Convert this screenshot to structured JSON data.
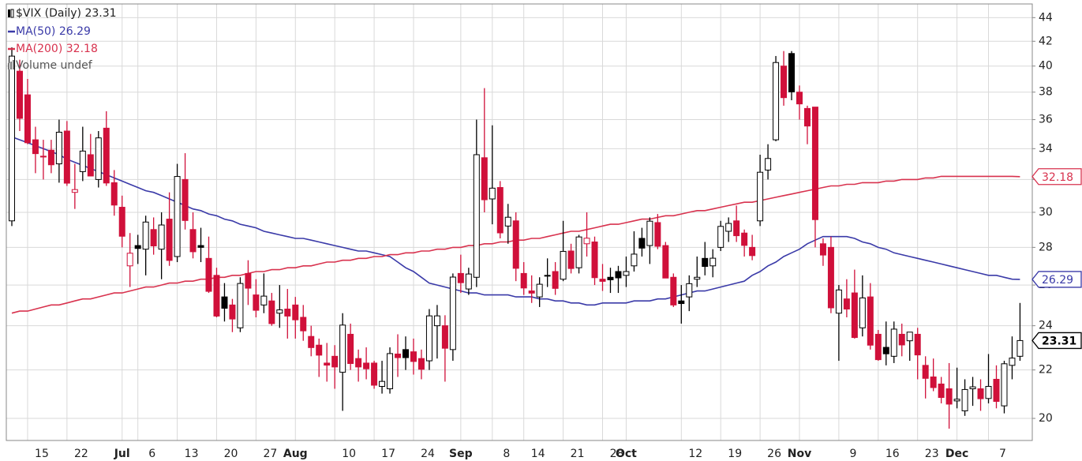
{
  "chart_data": {
    "type": "candlestick",
    "symbol": "$VIX (Daily)",
    "last": 23.31,
    "volume_legend": "Volume undef",
    "ylim": [
      19.15,
      45.2
    ],
    "ylog": true,
    "yticks": [
      20,
      22,
      24,
      26,
      28,
      30,
      32,
      34,
      36,
      38,
      40,
      42,
      44
    ],
    "grid": true,
    "up_color": "#000000",
    "down_color": "#d0103a",
    "categories": [
      null,
      null,
      "15",
      null,
      null,
      null,
      null,
      "22",
      null,
      null,
      null,
      null,
      null,
      null,
      "Jul",
      null,
      "6",
      null,
      null,
      null,
      null,
      "13",
      null,
      null,
      null,
      null,
      "20",
      null,
      null,
      null,
      null,
      "27",
      null,
      null,
      null,
      null,
      "Aug",
      null,
      null,
      null,
      null,
      "10",
      null,
      null,
      null,
      null,
      "17",
      null,
      null,
      null,
      null,
      "24",
      null,
      null,
      null,
      null,
      null,
      "Sep",
      null,
      null,
      null,
      "8",
      null,
      null,
      null,
      "14",
      null,
      null,
      null,
      null,
      "21",
      null,
      null,
      null,
      null,
      "28",
      null,
      null,
      "Oct",
      null,
      null,
      null,
      null,
      null,
      null,
      "12",
      null,
      null,
      null,
      null,
      "19",
      null,
      null,
      null,
      null,
      "26",
      null,
      null,
      null,
      null,
      "Nov",
      null,
      null,
      null,
      null,
      "9",
      null,
      null,
      null,
      null,
      "16",
      null,
      null,
      null,
      null,
      "23",
      null,
      null,
      null,
      null,
      "Dec",
      null,
      null,
      null,
      "7",
      null,
      null,
      null,
      null
    ],
    "candles": {
      "open": [
        29.5,
        39.6,
        37.8,
        34.6,
        33.5,
        33.9,
        33.0,
        35.2,
        31.2,
        32.5,
        33.6,
        32.0,
        35.4,
        31.8,
        30.3,
        27.0,
        28.1,
        27.9,
        29.0,
        27.9,
        29.6,
        27.5,
        32.0,
        29.0,
        28.1,
        27.4,
        26.5,
        25.4,
        25.0,
        23.9,
        26.6,
        25.5,
        25.0,
        25.2,
        24.6,
        24.8,
        25.0,
        24.4,
        23.5,
        23.1,
        22.3,
        22.6,
        21.9,
        23.6,
        22.5,
        22.3,
        22.3,
        21.3,
        21.2,
        22.7,
        22.9,
        22.8,
        22.5,
        22.4,
        24.0,
        24.0,
        22.9,
        26.6,
        25.8,
        26.4,
        33.4,
        30.8,
        31.5,
        29.2,
        29.5,
        26.6,
        25.7,
        25.4,
        26.5,
        26.7,
        26.3,
        27.8,
        26.9,
        28.2,
        28.3,
        26.3,
        26.4,
        26.7,
        26.5,
        27.0,
        28.5,
        28.1,
        29.4,
        28.1,
        26.4,
        25.2,
        25.4,
        26.3,
        27.4,
        27.0,
        28.0,
        28.9,
        29.5,
        28.8,
        28.0,
        29.5,
        32.6,
        34.6,
        40.0,
        41.0,
        38.0,
        36.8,
        36.9,
        28.2,
        28.0,
        24.6,
        25.3,
        25.6,
        23.9,
        25.4,
        23.6,
        23.0,
        22.6,
        23.6,
        23.3,
        23.6,
        22.2,
        21.7,
        21.4,
        21.2,
        20.7,
        20.3,
        21.2,
        21.2,
        20.8,
        21.6,
        20.5,
        22.2,
        22.6
      ],
      "high": [
        41.5,
        40.5,
        39.0,
        35.5,
        34.6,
        34.6,
        36.0,
        35.9,
        33.0,
        35.5,
        35.0,
        35.2,
        36.6,
        32.6,
        31.0,
        28.8,
        28.7,
        29.8,
        29.7,
        30.0,
        31.2,
        33.0,
        33.7,
        30.0,
        29.1,
        28.6,
        26.9,
        26.1,
        25.3,
        26.4,
        27.3,
        26.3,
        26.6,
        25.6,
        26.0,
        25.8,
        25.4,
        25.0,
        24.0,
        23.4,
        23.2,
        23.1,
        24.6,
        24.1,
        22.9,
        23.0,
        22.4,
        22.4,
        23.0,
        23.6,
        23.5,
        23.4,
        22.9,
        24.8,
        25.0,
        24.5,
        26.6,
        27.6,
        26.9,
        36.0,
        38.3,
        35.6,
        31.9,
        30.5,
        30.0,
        27.2,
        26.5,
        26.4,
        27.4,
        27.2,
        29.5,
        28.2,
        28.7,
        30.0,
        28.6,
        27.1,
        26.9,
        27.0,
        27.5,
        28.9,
        29.1,
        29.7,
        29.9,
        28.3,
        26.6,
        26.0,
        26.5,
        27.5,
        28.3,
        27.9,
        29.5,
        29.7,
        30.4,
        29.0,
        28.7,
        33.6,
        34.3,
        40.8,
        41.2,
        41.2,
        38.5,
        37.0,
        36.9,
        28.5,
        28.6,
        26.0,
        26.3,
        26.8,
        26.5,
        26.1,
        23.8,
        24.2,
        24.2,
        24.1,
        23.7,
        23.9,
        22.6,
        22.5,
        21.7,
        22.3,
        22.1,
        21.6,
        21.7,
        21.6,
        22.7,
        22.2,
        22.4,
        23.5,
        25.1
      ],
      "low": [
        29.2,
        35.2,
        34.3,
        32.4,
        32.0,
        32.4,
        31.8,
        31.6,
        30.2,
        31.9,
        32.2,
        31.5,
        31.6,
        29.8,
        28.0,
        25.9,
        27.1,
        26.5,
        27.6,
        26.3,
        27.0,
        27.2,
        29.0,
        27.4,
        27.2,
        25.6,
        24.4,
        24.2,
        23.7,
        23.7,
        25.0,
        24.4,
        24.6,
        24.0,
        23.9,
        23.4,
        23.4,
        23.3,
        22.6,
        21.7,
        21.5,
        21.2,
        20.3,
        22.0,
        21.5,
        21.6,
        21.2,
        21.0,
        21.0,
        21.7,
        22.0,
        21.8,
        21.6,
        22.0,
        22.5,
        21.5,
        22.4,
        25.6,
        25.5,
        25.9,
        30.0,
        29.3,
        28.5,
        28.2,
        26.2,
        25.5,
        25.1,
        24.9,
        25.9,
        25.5,
        26.2,
        26.6,
        26.6,
        27.5,
        26.0,
        25.7,
        25.6,
        25.6,
        25.9,
        26.7,
        27.5,
        27.1,
        27.9,
        26.4,
        24.9,
        24.1,
        24.7,
        25.9,
        26.5,
        26.4,
        27.8,
        28.3,
        28.3,
        27.5,
        27.3,
        29.2,
        32.0,
        34.5,
        37.0,
        37.4,
        36.0,
        34.3,
        28.0,
        27.0,
        24.6,
        22.4,
        24.4,
        23.4,
        23.5,
        22.9,
        22.4,
        22.2,
        22.3,
        22.6,
        22.4,
        21.6,
        20.8,
        21.1,
        20.6,
        19.6,
        20.4,
        20.1,
        20.5,
        20.3,
        20.6,
        20.4,
        20.2,
        21.6,
        22.4
      ],
      "close": [
        40.79,
        36.09,
        34.4,
        33.67,
        33.47,
        32.94,
        35.12,
        31.77,
        31.37,
        33.84,
        32.22,
        34.73,
        31.78,
        30.43,
        28.62,
        27.68,
        27.94,
        29.43,
        28.08,
        29.26,
        27.29,
        32.19,
        29.52,
        27.76,
        28.0,
        25.68,
        24.46,
        24.84,
        24.32,
        26.08,
        25.84,
        24.74,
        25.44,
        24.1,
        24.76,
        24.46,
        24.28,
        23.76,
        22.99,
        22.65,
        22.21,
        22.13,
        24.03,
        22.28,
        22.13,
        22.05,
        21.35,
        21.51,
        22.72,
        22.54,
        22.54,
        22.37,
        22.03,
        24.47,
        24.47,
        22.96,
        26.41,
        26.12,
        26.57,
        33.6,
        30.75,
        31.46,
        28.81,
        29.71,
        26.87,
        25.85,
        25.59,
        26.04,
        26.46,
        25.83,
        27.78,
        26.86,
        28.58,
        28.51,
        26.38,
        26.19,
        26.27,
        26.37,
        26.7,
        27.63,
        27.96,
        29.48,
        28.06,
        26.36,
        25.0,
        25.07,
        26.07,
        26.4,
        26.97,
        27.41,
        29.18,
        29.35,
        28.65,
        28.11,
        27.55,
        32.46,
        33.35,
        40.28,
        37.59,
        38.02,
        37.13,
        35.55,
        29.57,
        27.58,
        24.86,
        25.75,
        24.8,
        23.45,
        25.35,
        23.1,
        22.45,
        22.71,
        23.84,
        23.11,
        23.7,
        22.66,
        21.64,
        21.25,
        20.84,
        20.57,
        20.77,
        21.17,
        21.28,
        20.79,
        21.3,
        20.68,
        22.27,
        22.52,
        23.31
      ]
    },
    "series": [
      {
        "name": "MA(50)",
        "color": "#3a3aa8",
        "last": 26.29,
        "values": [
          34.8,
          34.6,
          34.4,
          34.2,
          34.0,
          33.8,
          33.6,
          33.3,
          33.1,
          32.9,
          32.7,
          32.5,
          32.3,
          32.1,
          31.9,
          31.7,
          31.5,
          31.3,
          31.2,
          31.0,
          30.8,
          30.6,
          30.4,
          30.2,
          30.1,
          29.9,
          29.8,
          29.6,
          29.5,
          29.3,
          29.2,
          29.1,
          28.9,
          28.8,
          28.7,
          28.6,
          28.5,
          28.5,
          28.4,
          28.3,
          28.2,
          28.1,
          28.0,
          27.9,
          27.8,
          27.8,
          27.7,
          27.6,
          27.5,
          27.2,
          26.9,
          26.7,
          26.4,
          26.1,
          26.0,
          25.9,
          25.8,
          25.7,
          25.6,
          25.6,
          25.5,
          25.5,
          25.5,
          25.5,
          25.4,
          25.4,
          25.4,
          25.3,
          25.3,
          25.2,
          25.2,
          25.1,
          25.1,
          25.0,
          25.0,
          25.1,
          25.1,
          25.1,
          25.1,
          25.2,
          25.2,
          25.2,
          25.3,
          25.3,
          25.4,
          25.5,
          25.6,
          25.7,
          25.7,
          25.8,
          25.9,
          26.0,
          26.1,
          26.2,
          26.5,
          26.7,
          27.0,
          27.2,
          27.5,
          27.7,
          27.9,
          28.2,
          28.4,
          28.6,
          28.6,
          28.6,
          28.6,
          28.5,
          28.3,
          28.2,
          28.0,
          27.9,
          27.7,
          27.6,
          27.5,
          27.4,
          27.3,
          27.2,
          27.1,
          27.0,
          26.9,
          26.8,
          26.7,
          26.6,
          26.5,
          26.5,
          26.4,
          26.3,
          26.29
        ]
      },
      {
        "name": "MA(200)",
        "color": "#d8324e",
        "last": 32.18,
        "values": [
          24.6,
          24.7,
          24.7,
          24.8,
          24.9,
          25.0,
          25.0,
          25.1,
          25.2,
          25.3,
          25.3,
          25.4,
          25.5,
          25.6,
          25.6,
          25.7,
          25.8,
          25.9,
          25.9,
          26.0,
          26.1,
          26.1,
          26.2,
          26.2,
          26.3,
          26.3,
          26.4,
          26.4,
          26.5,
          26.5,
          26.6,
          26.7,
          26.7,
          26.8,
          26.8,
          26.9,
          26.9,
          27.0,
          27.0,
          27.1,
          27.2,
          27.2,
          27.3,
          27.3,
          27.4,
          27.4,
          27.5,
          27.5,
          27.6,
          27.6,
          27.7,
          27.7,
          27.8,
          27.8,
          27.9,
          27.9,
          28.0,
          28.0,
          28.1,
          28.1,
          28.2,
          28.2,
          28.3,
          28.3,
          28.4,
          28.4,
          28.5,
          28.5,
          28.6,
          28.7,
          28.8,
          28.9,
          28.9,
          29.0,
          29.1,
          29.2,
          29.3,
          29.3,
          29.4,
          29.5,
          29.6,
          29.6,
          29.7,
          29.8,
          29.8,
          29.9,
          30.0,
          30.1,
          30.1,
          30.2,
          30.3,
          30.4,
          30.5,
          30.6,
          30.6,
          30.7,
          30.8,
          30.9,
          31.0,
          31.1,
          31.2,
          31.3,
          31.4,
          31.5,
          31.6,
          31.6,
          31.7,
          31.7,
          31.8,
          31.8,
          31.8,
          31.9,
          31.9,
          32.0,
          32.0,
          32.0,
          32.1,
          32.1,
          32.2,
          32.2,
          32.2,
          32.2,
          32.2,
          32.2,
          32.2,
          32.2,
          32.2,
          32.2,
          32.18
        ]
      }
    ]
  }
}
